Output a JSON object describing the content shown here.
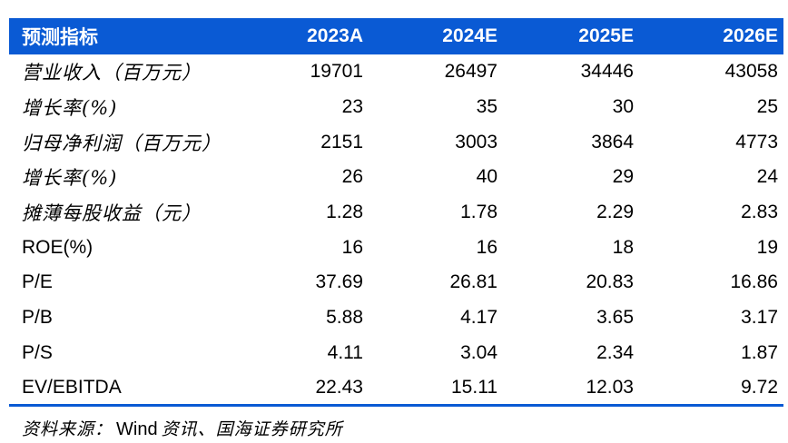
{
  "table": {
    "columns": [
      "预测指标",
      "2023A",
      "2024E",
      "2025E",
      "2026E"
    ],
    "rows": [
      {
        "label": "营业收入（百万元）",
        "values": [
          "19701",
          "26497",
          "34446",
          "43058"
        ]
      },
      {
        "label": "增长率(%)",
        "values": [
          "23",
          "35",
          "30",
          "25"
        ]
      },
      {
        "label": "归母净利润（百万元）",
        "values": [
          "2151",
          "3003",
          "3864",
          "4773"
        ]
      },
      {
        "label": "增长率(%)",
        "values": [
          "26",
          "40",
          "29",
          "24"
        ]
      },
      {
        "label": "摊薄每股收益（元）",
        "values": [
          "1.28",
          "1.78",
          "2.29",
          "2.83"
        ]
      },
      {
        "label": "ROE(%)",
        "values": [
          "16",
          "16",
          "18",
          "19"
        ]
      },
      {
        "label": "P/E",
        "values": [
          "37.69",
          "26.81",
          "20.83",
          "16.86"
        ]
      },
      {
        "label": "P/B",
        "values": [
          "5.88",
          "4.17",
          "3.65",
          "3.17"
        ]
      },
      {
        "label": "P/S",
        "values": [
          "4.11",
          "3.04",
          "2.34",
          "1.87"
        ]
      },
      {
        "label": "EV/EBITDA",
        "values": [
          "22.43",
          "15.11",
          "12.03",
          "9.72"
        ]
      }
    ]
  },
  "footer": {
    "prefix": "资料来源：",
    "latin": "Wind",
    "suffix": "资讯、国海证券研究所"
  },
  "colors": {
    "header_bg": "#0a5ad4",
    "header_text": "#ffffff",
    "rule": "#0a5ad4",
    "body_text": "#000000"
  }
}
